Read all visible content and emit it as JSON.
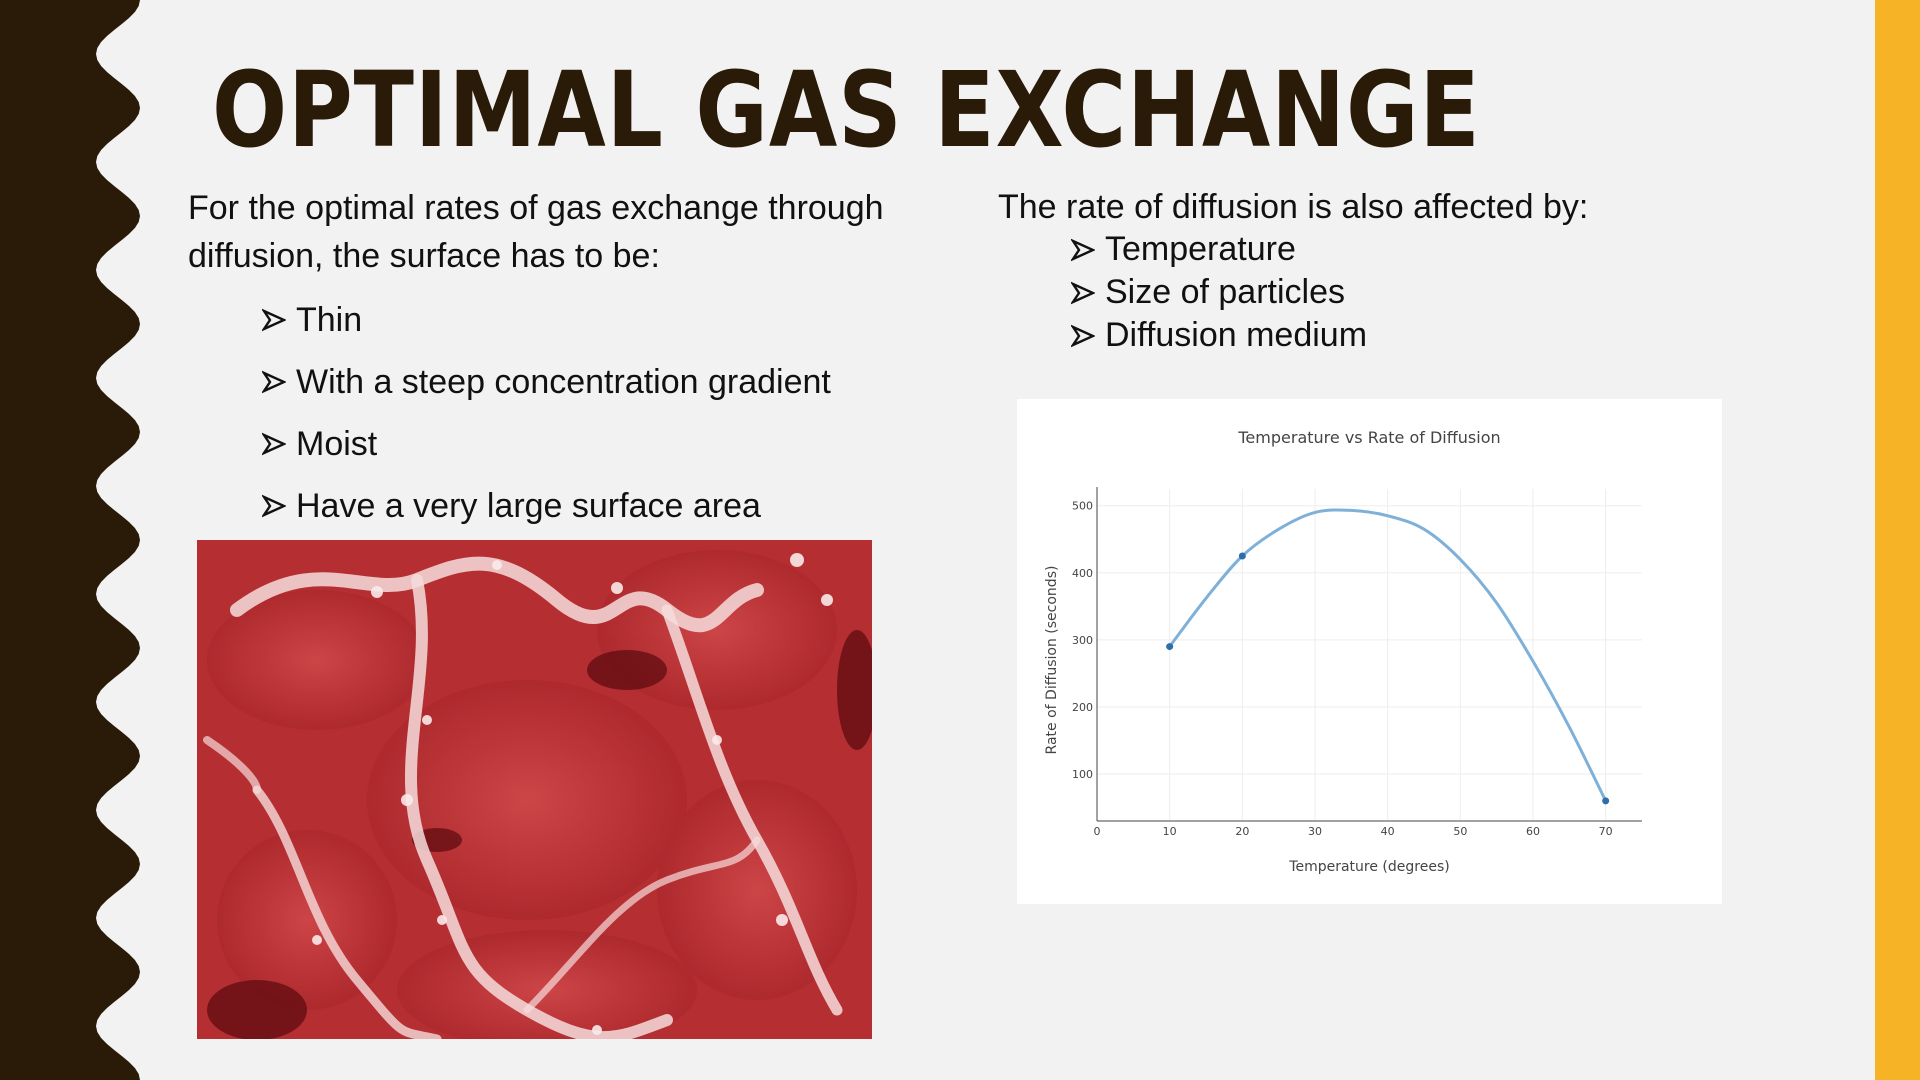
{
  "slide": {
    "title": "OPTIMAL GAS EXCHANGE",
    "colors": {
      "left_band": "#2a1a08",
      "right_band": "#f5b325",
      "title": "#2a1a08",
      "background": "#f2f2f2"
    }
  },
  "left": {
    "intro": "For the optimal rates of gas exchange through diffusion, the surface has to be:",
    "bullets": [
      "Thin",
      "With a steep concentration gradient",
      "Moist",
      "Have a very large surface area"
    ],
    "bullet_icon": "arrowhead-bullet-icon"
  },
  "right": {
    "intro": "The rate of diffusion is also affected by:",
    "bullets": [
      "Temperature",
      "Size of particles",
      "Diffusion medium"
    ]
  },
  "image": {
    "subject": "micrograph-image"
  },
  "chart_data": {
    "type": "line",
    "title": "Temperature vs Rate of Diffusion",
    "xlabel": "Temperature (degrees)",
    "ylabel": "Rate of Diffusion (seconds)",
    "xlim": [
      0,
      75
    ],
    "ylim": [
      30,
      510
    ],
    "xticks": [
      0,
      10,
      20,
      30,
      40,
      50,
      60,
      70
    ],
    "yticks": [
      100,
      200,
      300,
      400,
      500
    ],
    "grid": true,
    "series": [
      {
        "x": [
          10,
          20,
          70
        ],
        "y": [
          290,
          425,
          60
        ],
        "color": "#7fb0d8"
      }
    ],
    "curve_samples": {
      "x": [
        10,
        15,
        20,
        25,
        30,
        35,
        40,
        45,
        50,
        55,
        60,
        65,
        70
      ],
      "y": [
        290,
        362,
        425,
        465,
        490,
        493,
        485,
        465,
        420,
        355,
        268,
        170,
        60
      ]
    }
  }
}
